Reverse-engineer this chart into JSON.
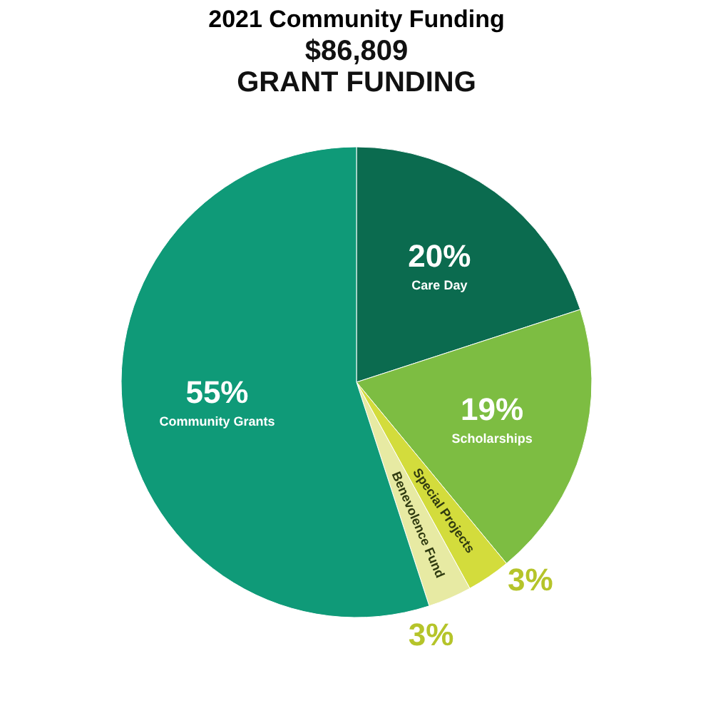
{
  "chart_data": {
    "type": "pie",
    "title": "2021 Community Funding",
    "subtitle": "GRANT FUNDING",
    "annotations": [
      "$86,809"
    ],
    "categories": [
      "Care Day",
      "Scholarships",
      "Special Projects",
      "Benevolence Fund",
      "Community Grants"
    ],
    "values": [
      20,
      19,
      3,
      3,
      55
    ],
    "colors": [
      "#0b6b4f",
      "#7dbd42",
      "#d3dc3c",
      "#e7eaa3",
      "#0f9a78"
    ],
    "value_labels": [
      "20%",
      "19%",
      "3%",
      "3%",
      "55%"
    ]
  }
}
